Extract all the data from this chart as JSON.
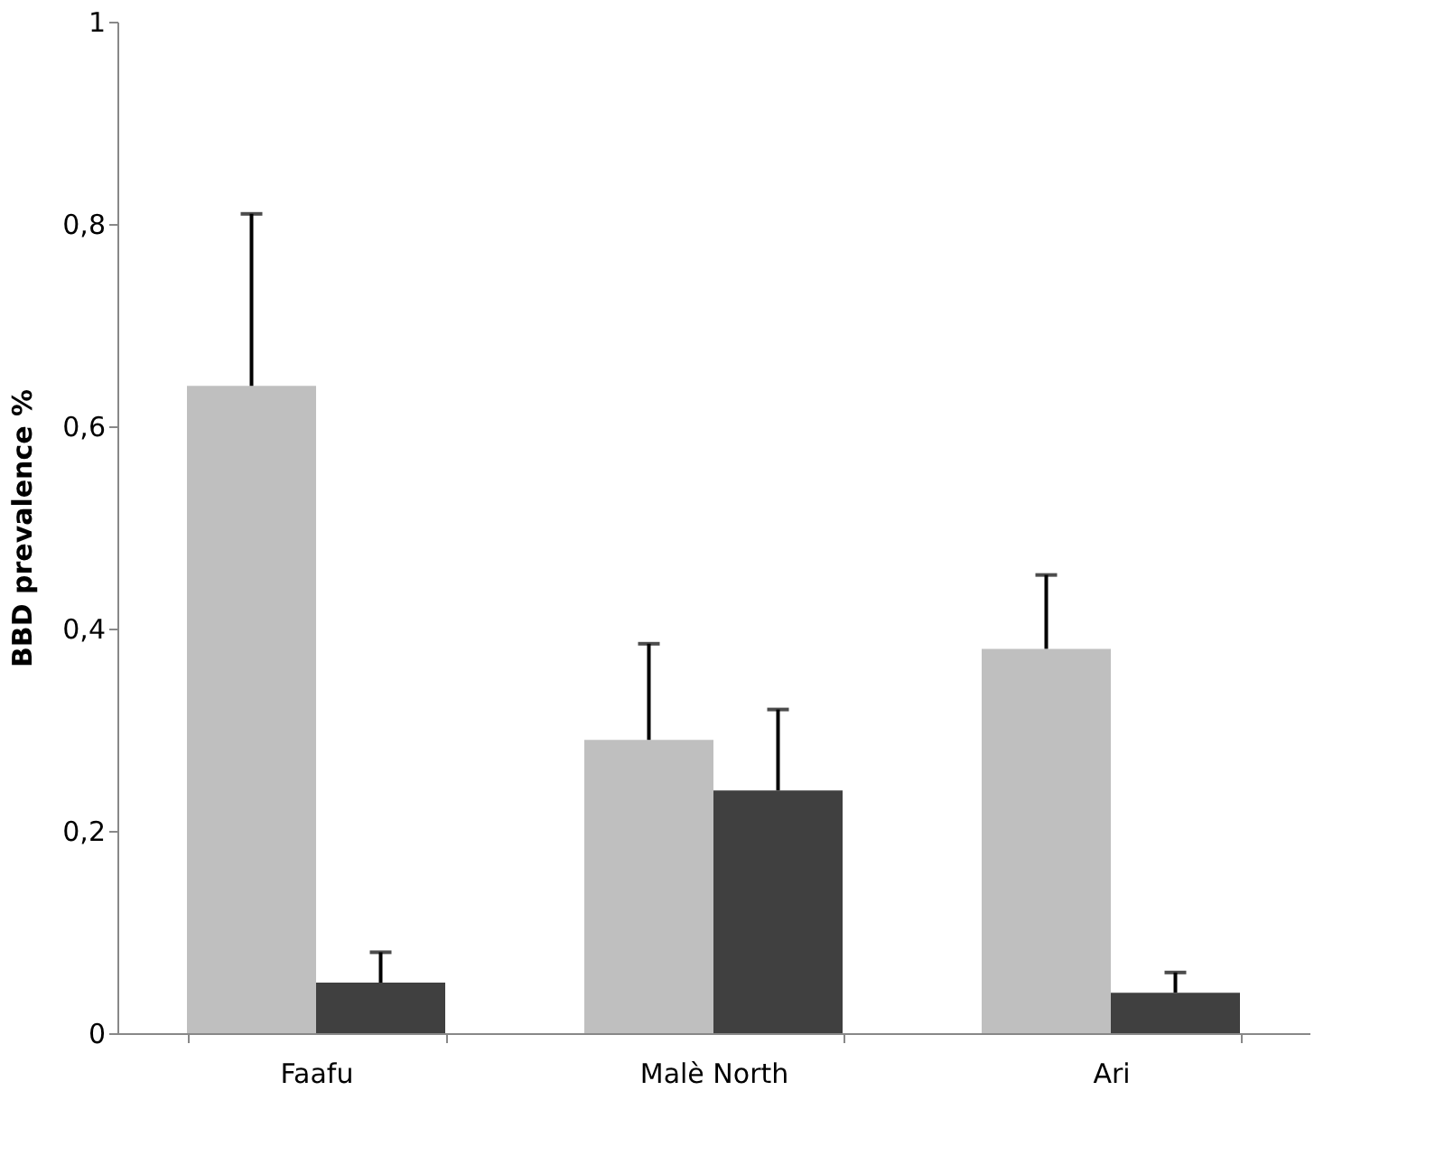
{
  "chart_data": {
    "type": "bar",
    "ylabel": "BBD prevalence %",
    "categories": [
      "Faafu",
      "Malè North",
      "Ari"
    ],
    "series": [
      {
        "color": "#bfbfbf",
        "values": [
          0.64,
          0.29,
          0.38
        ],
        "errors": [
          0.17,
          0.095,
          0.073
        ]
      },
      {
        "color": "#404040",
        "values": [
          0.05,
          0.24,
          0.04
        ],
        "errors": [
          0.03,
          0.08,
          0.02
        ]
      }
    ],
    "ylim": [
      0,
      1
    ],
    "yticks": [
      0,
      {
        "value": 0.2,
        "label": "0,2"
      },
      {
        "value": 0.4,
        "label": "0,4"
      },
      {
        "value": 0.6,
        "label": "0,6"
      },
      {
        "value": 0.8,
        "label": "0,8"
      },
      1
    ],
    "grid": false,
    "legend": false
  }
}
